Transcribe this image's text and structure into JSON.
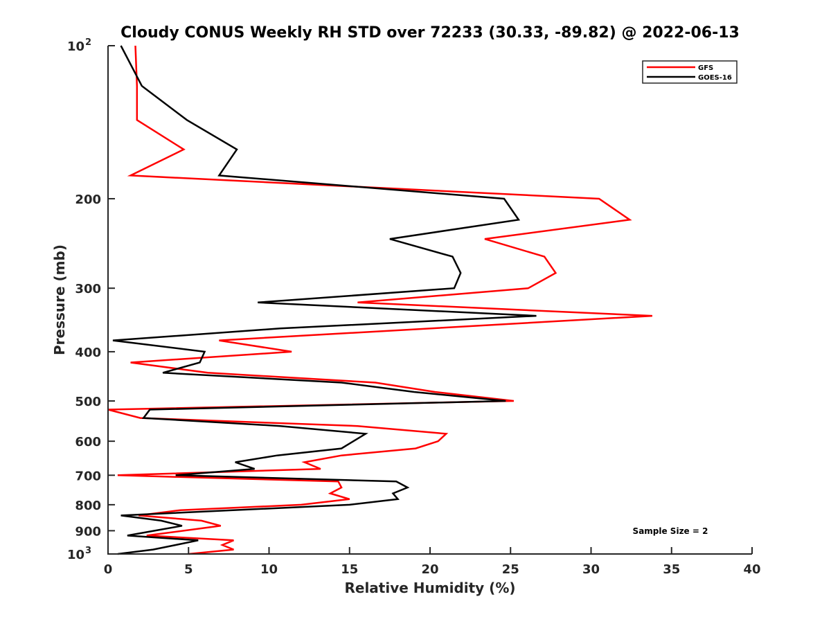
{
  "chart_data": {
    "type": "line",
    "title": "Cloudy CONUS Weekly RH STD over 72233 (30.33, -89.82) @ 2022-06-13",
    "xlabel": "Relative Humidity (%)",
    "ylabel": "Pressure (mb)",
    "xlim": [
      0,
      40
    ],
    "ylim": [
      100,
      1000
    ],
    "yscale": "log",
    "y_reversed": true,
    "x_ticks": [
      "0",
      "5",
      "10",
      "15",
      "20",
      "25",
      "30",
      "35",
      "40"
    ],
    "x_tick_values": [
      0,
      5,
      10,
      15,
      20,
      25,
      30,
      35,
      40
    ],
    "y_ticks": [
      {
        "value": 100,
        "base": "10",
        "exp": "2"
      },
      {
        "value": 200,
        "label": "200"
      },
      {
        "value": 300,
        "label": "300"
      },
      {
        "value": 400,
        "label": "400"
      },
      {
        "value": 500,
        "label": "500"
      },
      {
        "value": 600,
        "label": "600"
      },
      {
        "value": 700,
        "label": "700"
      },
      {
        "value": 800,
        "label": "800"
      },
      {
        "value": 900,
        "label": "900"
      },
      {
        "value": 1000,
        "base": "10",
        "exp": "3"
      }
    ],
    "grid": false,
    "legend_position": "top-right",
    "annotation": "Sample Size = 2",
    "series": [
      {
        "name": "GFS",
        "color": "#ff0000",
        "points": [
          [
            1.7,
            100
          ],
          [
            1.8,
            120
          ],
          [
            1.8,
            140
          ],
          [
            4.7,
            160
          ],
          [
            1.4,
            180
          ],
          [
            30.5,
            200
          ],
          [
            32.4,
            220
          ],
          [
            23.4,
            240
          ],
          [
            27.1,
            260
          ],
          [
            27.8,
            280
          ],
          [
            26.1,
            300
          ],
          [
            15.5,
            320
          ],
          [
            33.8,
            340
          ],
          [
            6.9,
            380
          ],
          [
            11.4,
            400
          ],
          [
            1.4,
            420
          ],
          [
            6.2,
            440
          ],
          [
            16.6,
            460
          ],
          [
            20.3,
            480
          ],
          [
            25.2,
            500
          ],
          [
            0.0,
            520
          ],
          [
            2.0,
            540
          ],
          [
            15.5,
            560
          ],
          [
            21.0,
            580
          ],
          [
            20.5,
            600
          ],
          [
            19.1,
            620
          ],
          [
            14.5,
            640
          ],
          [
            12.2,
            660
          ],
          [
            13.2,
            680
          ],
          [
            0.6,
            700
          ],
          [
            14.3,
            720
          ],
          [
            14.5,
            740
          ],
          [
            13.8,
            760
          ],
          [
            15.0,
            780
          ],
          [
            12.0,
            800
          ],
          [
            4.5,
            820
          ],
          [
            1.9,
            840
          ],
          [
            5.8,
            860
          ],
          [
            7.0,
            880
          ],
          [
            2.4,
            920
          ],
          [
            7.8,
            940
          ],
          [
            7.1,
            960
          ],
          [
            7.8,
            980
          ],
          [
            5.0,
            1000
          ]
        ]
      },
      {
        "name": "GOES-16",
        "color": "#000000",
        "points": [
          [
            0.8,
            100
          ],
          [
            2.1,
            120
          ],
          [
            4.9,
            140
          ],
          [
            8.0,
            160
          ],
          [
            6.9,
            180
          ],
          [
            24.6,
            200
          ],
          [
            25.5,
            220
          ],
          [
            17.5,
            240
          ],
          [
            21.4,
            260
          ],
          [
            21.9,
            280
          ],
          [
            21.5,
            300
          ],
          [
            9.3,
            320
          ],
          [
            26.6,
            340
          ],
          [
            10.7,
            360
          ],
          [
            0.3,
            380
          ],
          [
            6.0,
            400
          ],
          [
            5.7,
            420
          ],
          [
            3.4,
            440
          ],
          [
            14.5,
            460
          ],
          [
            19.0,
            480
          ],
          [
            24.7,
            500
          ],
          [
            2.6,
            520
          ],
          [
            2.2,
            540
          ],
          [
            10.7,
            560
          ],
          [
            16.0,
            580
          ],
          [
            14.5,
            620
          ],
          [
            10.5,
            640
          ],
          [
            7.9,
            660
          ],
          [
            9.1,
            680
          ],
          [
            4.2,
            700
          ],
          [
            17.9,
            720
          ],
          [
            18.6,
            740
          ],
          [
            17.7,
            760
          ],
          [
            18.0,
            780
          ],
          [
            15.0,
            800
          ],
          [
            0.8,
            840
          ],
          [
            3.3,
            860
          ],
          [
            4.6,
            880
          ],
          [
            1.2,
            920
          ],
          [
            5.6,
            940
          ],
          [
            4.2,
            960
          ],
          [
            2.8,
            980
          ],
          [
            0.6,
            1000
          ]
        ]
      }
    ]
  }
}
